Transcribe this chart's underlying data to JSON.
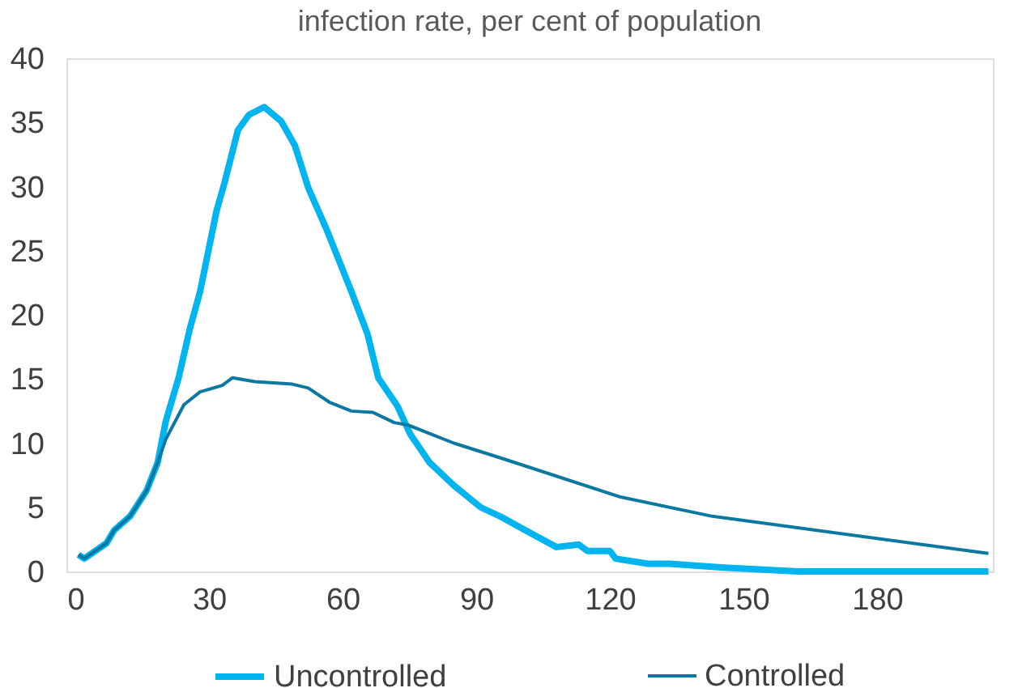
{
  "chart_data": {
    "type": "line",
    "title": "infection rate, per cent of population",
    "xlim": [
      -2,
      206
    ],
    "xticks": [
      0,
      30,
      60,
      90,
      120,
      150,
      180
    ],
    "ylim": [
      0,
      40
    ],
    "yticks": [
      0,
      5,
      10,
      15,
      20,
      25,
      30,
      35,
      40
    ],
    "grid": false,
    "legend": "bottom",
    "marker": "none",
    "line_style": "solid",
    "series": [
      {
        "name": "Uncontrolled",
        "color": "#00b4f0",
        "x": [
          0.7,
          2,
          7,
          8.7,
          12.3,
          16,
          18.5,
          20.3,
          23.2,
          25.7,
          28,
          31.7,
          33.5,
          36.5,
          39,
          42.4,
          46.2,
          49.3,
          52.3,
          56.6,
          62,
          65.6,
          68,
          72.3,
          75.2,
          79.5,
          85,
          91,
          95.9,
          100,
          108,
          113,
          115,
          120,
          121.3,
          128.6,
          133.4,
          145.6,
          162.4,
          205
        ],
        "values": [
          1.3,
          1.0,
          2.2,
          3.2,
          4.3,
          6.3,
          8.5,
          11.7,
          15.1,
          18.9,
          21.8,
          28.1,
          30.3,
          34.4,
          35.6,
          36.2,
          35.1,
          33.2,
          29.9,
          26.5,
          21.8,
          18.5,
          15.1,
          12.9,
          10.7,
          8.5,
          6.7,
          5.0,
          4.2,
          3.4,
          1.9,
          2.1,
          1.6,
          1.6,
          1.0,
          0.6,
          0.6,
          0.3,
          0,
          0
        ]
      },
      {
        "name": "Controlled",
        "color": "#0a78a0",
        "x": [
          0.7,
          2,
          7,
          8.7,
          12.3,
          16,
          18.5,
          20.3,
          24.4,
          28,
          33,
          35.3,
          40.3,
          48.7,
          52.3,
          57,
          62,
          66.8,
          71.6,
          74.8,
          85,
          95.9,
          122.4,
          143,
          205
        ],
        "values": [
          1.3,
          1.0,
          2.2,
          3.2,
          4.3,
          6.3,
          8.5,
          10.3,
          13.0,
          14.0,
          14.5,
          15.1,
          14.8,
          14.6,
          14.3,
          13.2,
          12.5,
          12.4,
          11.6,
          11.4,
          10.0,
          8.8,
          5.8,
          4.3,
          1.4
        ]
      }
    ]
  }
}
